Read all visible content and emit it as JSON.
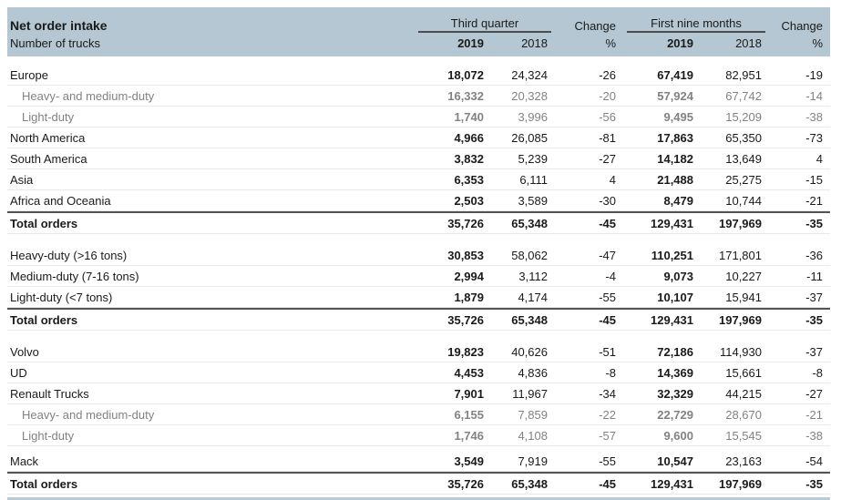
{
  "table": {
    "title": "Net order intake",
    "subtitle": "Number of trucks",
    "col_groups": {
      "third_quarter": "Third quarter",
      "first_nine_months": "First nine months",
      "change": "Change",
      "percent": "%",
      "year_2019": "2019",
      "year_2018": "2018"
    },
    "colors": {
      "header_bg": "#b5c7d2",
      "text_dark": "#1a1a1a",
      "text_gray": "#828282",
      "rule_dark": "#545454",
      "rule_light": "#eaeaea",
      "bottom_line": "#b9cbd6"
    },
    "sections": [
      {
        "rows": [
          {
            "label": "Europe",
            "style": "normal",
            "values": [
              "18,072",
              "24,324",
              "-26",
              "67,419",
              "82,951",
              "-19"
            ]
          },
          {
            "label": "Heavy- and medium-duty",
            "style": "sub",
            "values": [
              "16,332",
              "20,328",
              "-20",
              "57,924",
              "67,742",
              "-14"
            ]
          },
          {
            "label": "Light-duty",
            "style": "sub",
            "values": [
              "1,740",
              "3,996",
              "-56",
              "9,495",
              "15,209",
              "-38"
            ]
          },
          {
            "label": "North America",
            "style": "normal",
            "values": [
              "4,966",
              "26,085",
              "-81",
              "17,863",
              "65,350",
              "-73"
            ]
          },
          {
            "label": "South America",
            "style": "normal",
            "values": [
              "3,832",
              "5,239",
              "-27",
              "14,182",
              "13,649",
              "4"
            ]
          },
          {
            "label": "Asia",
            "style": "normal",
            "values": [
              "6,353",
              "6,111",
              "4",
              "21,488",
              "25,275",
              "-15"
            ]
          },
          {
            "label": "Africa and Oceania",
            "style": "normal",
            "values": [
              "2,503",
              "3,589",
              "-30",
              "8,479",
              "10,744",
              "-21"
            ]
          },
          {
            "label": "Total orders",
            "style": "total",
            "values": [
              "35,726",
              "65,348",
              "-45",
              "129,431",
              "197,969",
              "-35"
            ]
          }
        ]
      },
      {
        "rows": [
          {
            "label": "Heavy-duty (>16 tons)",
            "style": "normal",
            "values": [
              "30,853",
              "58,062",
              "-47",
              "110,251",
              "171,801",
              "-36"
            ]
          },
          {
            "label": "Medium-duty (7-16 tons)",
            "style": "normal",
            "values": [
              "2,994",
              "3,112",
              "-4",
              "9,073",
              "10,227",
              "-11"
            ]
          },
          {
            "label": "Light-duty (<7 tons)",
            "style": "normal",
            "values": [
              "1,879",
              "4,174",
              "-55",
              "10,107",
              "15,941",
              "-37"
            ]
          },
          {
            "label": "Total orders",
            "style": "total",
            "values": [
              "35,726",
              "65,348",
              "-45",
              "129,431",
              "197,969",
              "-35"
            ]
          }
        ]
      },
      {
        "rows": [
          {
            "label": "Volvo",
            "style": "normal",
            "values": [
              "19,823",
              "40,626",
              "-51",
              "72,186",
              "114,930",
              "-37"
            ]
          },
          {
            "label": "UD",
            "style": "normal",
            "values": [
              "4,453",
              "4,836",
              "-8",
              "14,369",
              "15,661",
              "-8"
            ]
          },
          {
            "label": "Renault Trucks",
            "style": "normal",
            "values": [
              "7,901",
              "11,967",
              "-34",
              "32,329",
              "44,215",
              "-27"
            ]
          },
          {
            "label": "Heavy- and medium-duty",
            "style": "sub",
            "values": [
              "6,155",
              "7,859",
              "-22",
              "22,729",
              "28,670",
              "-21"
            ]
          },
          {
            "label": "Light-duty",
            "style": "sub",
            "values": [
              "1,746",
              "4,108",
              "-57",
              "9,600",
              "15,545",
              "-38"
            ]
          },
          {
            "label": "Mack",
            "style": "normal",
            "gap_before": true,
            "values": [
              "3,549",
              "7,919",
              "-55",
              "10,547",
              "23,163",
              "-54"
            ]
          },
          {
            "label": "Total orders",
            "style": "total",
            "values": [
              "35,726",
              "65,348",
              "-45",
              "129,431",
              "197,969",
              "-35"
            ]
          }
        ]
      }
    ]
  }
}
